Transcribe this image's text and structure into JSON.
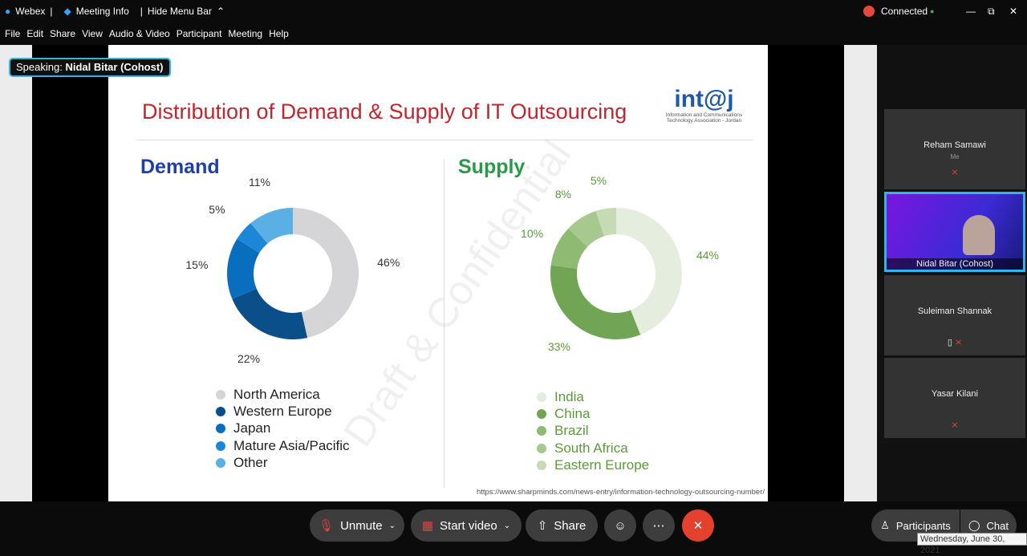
{
  "titlebar": {
    "app": "Webex",
    "meeting_info": "Meeting Info",
    "hide_menu": "Hide Menu Bar",
    "status": "Connected"
  },
  "menu": [
    "File",
    "Edit",
    "Share",
    "View",
    "Audio & Video",
    "Participant",
    "Meeting",
    "Help"
  ],
  "speaking": {
    "label": "Speaking:",
    "name": "Nidal Bitar (Cohost)"
  },
  "slide": {
    "title": "Distribution of Demand & Supply of IT Outsourcing",
    "logo": "int@j",
    "logo_sub1": "Information and Communications",
    "logo_sub2": "Technology Association - Jordan",
    "watermark": "Draft & Confidential",
    "source": "https://www.sharpminds.com/news-entry/information-technology-outsourcing-number/"
  },
  "chart_data": [
    {
      "type": "pie",
      "donut": true,
      "title": "Demand",
      "categories": [
        "North America",
        "Western Europe",
        "Japan",
        "Mature Asia/Pacific",
        "Other"
      ],
      "values": [
        46,
        22,
        15,
        5,
        11
      ],
      "labels": [
        "46%",
        "22%",
        "15%",
        "5%",
        "11%"
      ],
      "colors": [
        "#d5d5d8",
        "#0b4f8a",
        "#0a6ebf",
        "#1c87d6",
        "#5aafe4"
      ],
      "legend": "bottom"
    },
    {
      "type": "pie",
      "donut": true,
      "title": "Supply",
      "categories": [
        "India",
        "China",
        "Brazil",
        "South Africa",
        "Eastern Europe"
      ],
      "values": [
        44,
        33,
        10,
        8,
        5
      ],
      "labels": [
        "44%",
        "33%",
        "10%",
        "8%",
        "5%"
      ],
      "colors": [
        "#e5eddf",
        "#71a553",
        "#8fba72",
        "#a7c88f",
        "#c5dab5"
      ],
      "legend": "bottom"
    }
  ],
  "participants": [
    {
      "name": "Reham Samawi",
      "sub": "Me"
    },
    {
      "name": "Nidal Bitar  (Cohost)"
    },
    {
      "name": "Suleiman Shannak"
    },
    {
      "name": "Yasar Kilani"
    }
  ],
  "controls": {
    "unmute": "Unmute",
    "start_video": "Start video",
    "share": "Share",
    "participants": "Participants",
    "chat": "Chat"
  },
  "tooltip": "Wednesday, June 30, 2021"
}
